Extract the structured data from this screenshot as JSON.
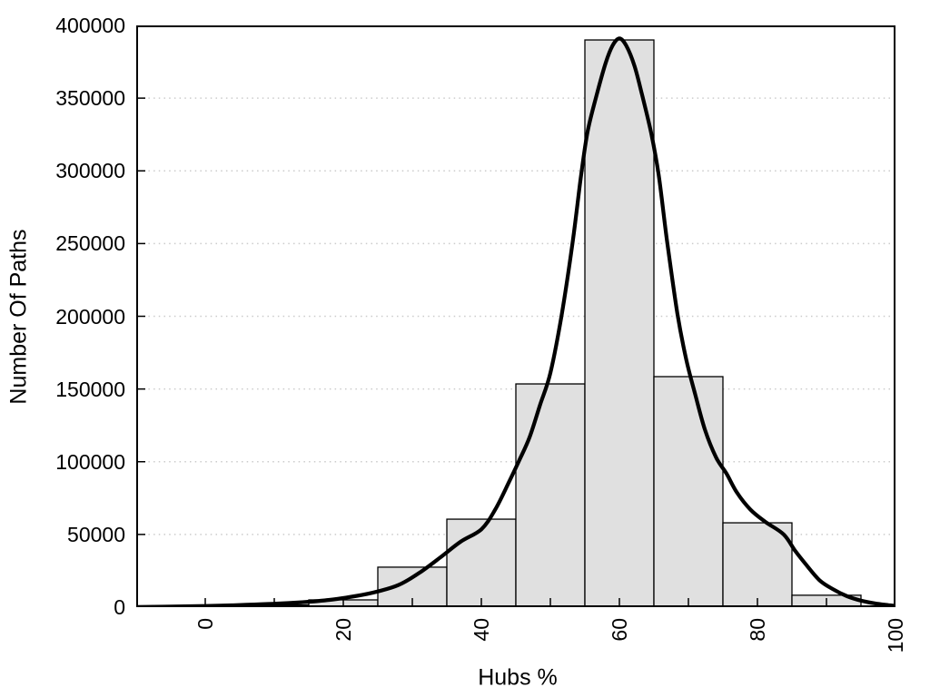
{
  "figure": {
    "background": "#ffffff"
  },
  "chart_data": {
    "type": "bar",
    "subtype": "histogram-with-fit-curve",
    "title": "",
    "xlabel": "Hubs %",
    "ylabel": "Number Of Paths",
    "xlim": [
      -10,
      100
    ],
    "ylim": [
      0,
      400000
    ],
    "x_major_ticks": [
      0,
      20,
      40,
      60,
      80,
      100
    ],
    "x_minor_ticks": [
      10,
      30,
      50,
      70,
      90
    ],
    "y_ticks": [
      0,
      50000,
      100000,
      150000,
      200000,
      250000,
      300000,
      350000,
      400000
    ],
    "grid": {
      "horizontal_dotted_at": [
        50000,
        100000,
        150000,
        200000,
        250000,
        300000,
        350000
      ],
      "vertical": false
    },
    "legend": "none",
    "bars": [
      {
        "bin": [
          5,
          15
        ],
        "count": 1500
      },
      {
        "bin": [
          15,
          25
        ],
        "count": 5000
      },
      {
        "bin": [
          25,
          35
        ],
        "count": 27500
      },
      {
        "bin": [
          35,
          45
        ],
        "count": 60500
      },
      {
        "bin": [
          45,
          55
        ],
        "count": 153500
      },
      {
        "bin": [
          55,
          65
        ],
        "count": 390000
      },
      {
        "bin": [
          65,
          75
        ],
        "count": 158500
      },
      {
        "bin": [
          75,
          85
        ],
        "count": 58000
      },
      {
        "bin": [
          85,
          95
        ],
        "count": 8200
      }
    ],
    "fit_curve": {
      "peak": [
        60,
        391000
      ],
      "points": [
        [
          -10,
          150
        ],
        [
          -6,
          300
        ],
        [
          -2,
          600
        ],
        [
          2,
          1000
        ],
        [
          6,
          1600
        ],
        [
          10,
          2400
        ],
        [
          14,
          3400
        ],
        [
          18,
          5000
        ],
        [
          22,
          7800
        ],
        [
          25,
          10800
        ],
        [
          28,
          15200
        ],
        [
          31,
          23500
        ],
        [
          34,
          34000
        ],
        [
          37,
          45000
        ],
        [
          40,
          53500
        ],
        [
          42,
          67000
        ],
        [
          44,
          86000
        ],
        [
          45.5,
          101000
        ],
        [
          47,
          117000
        ],
        [
          48.5,
          139000
        ],
        [
          50,
          161000
        ],
        [
          51.6,
          200000
        ],
        [
          53.2,
          250000
        ],
        [
          54.4,
          295000
        ],
        [
          55.4,
          327000
        ],
        [
          56.7,
          352000
        ],
        [
          58,
          374000
        ],
        [
          59,
          386000
        ],
        [
          60,
          391000
        ],
        [
          61,
          386000
        ],
        [
          62.2,
          372000
        ],
        [
          63.3,
          352000
        ],
        [
          64.6,
          326000
        ],
        [
          65.7,
          297000
        ],
        [
          66.9,
          252000
        ],
        [
          68.4,
          202000
        ],
        [
          69.7,
          170000
        ],
        [
          71,
          146000
        ],
        [
          72.4,
          122000
        ],
        [
          74,
          103000
        ],
        [
          75.5,
          92000
        ],
        [
          77,
          79000
        ],
        [
          79,
          67000
        ],
        [
          81.2,
          58500
        ],
        [
          83.8,
          50000
        ],
        [
          85.5,
          38500
        ],
        [
          87,
          29500
        ],
        [
          89,
          18500
        ],
        [
          91,
          12200
        ],
        [
          93,
          7500
        ],
        [
          95,
          4500
        ],
        [
          97,
          2600
        ],
        [
          99,
          1400
        ],
        [
          100,
          900
        ]
      ]
    },
    "colors": {
      "bar_fill": "#e0e0e0",
      "bar_border": "#000000",
      "curve": "#000000",
      "grid": "#cbcbcb",
      "axis": "#000000",
      "text": "#000000",
      "background": "#ffffff"
    }
  }
}
